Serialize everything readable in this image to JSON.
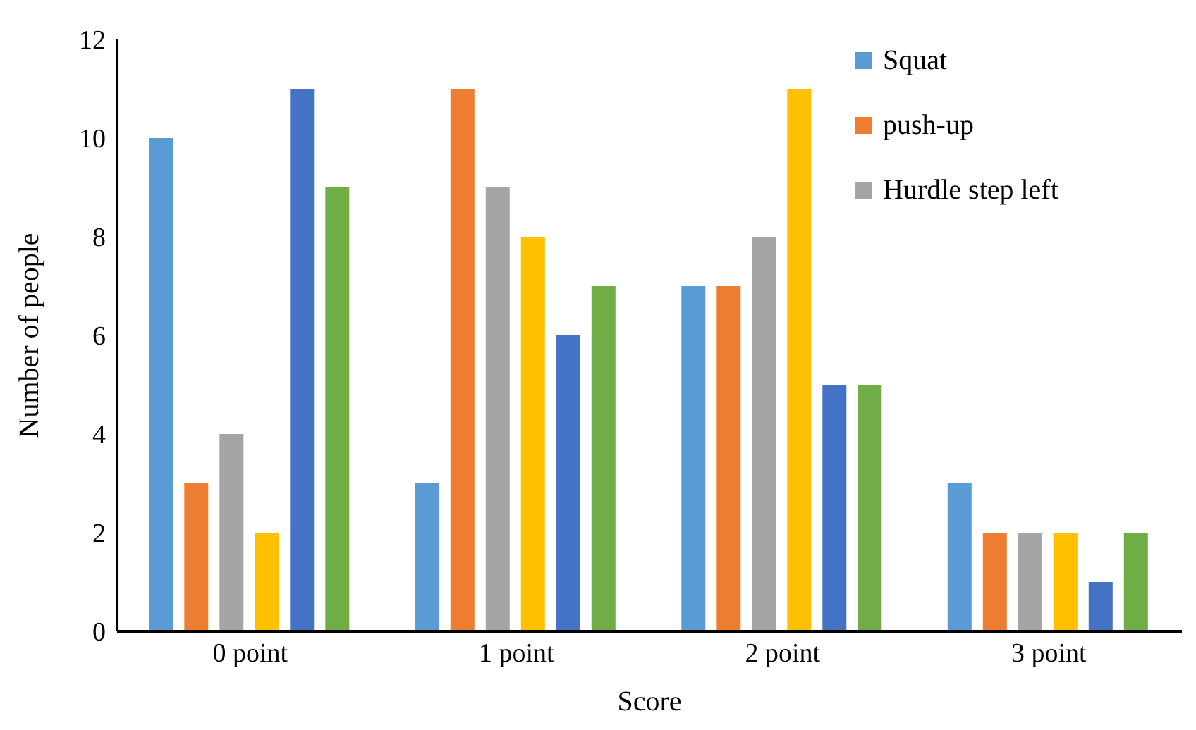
{
  "chart_data": {
    "type": "bar",
    "xlabel": "Score",
    "ylabel": "Number of people",
    "categories": [
      "0 point",
      "1 point",
      "2 point",
      "3 point"
    ],
    "series": [
      {
        "name": "Squat",
        "color": "#5b9bd5",
        "values": [
          10,
          3,
          7,
          3
        ]
      },
      {
        "name": "push-up",
        "color": "#ed7d31",
        "values": [
          3,
          11,
          7,
          2
        ]
      },
      {
        "name": "Hurdle step left",
        "color": "#a5a5a5",
        "values": [
          4,
          9,
          8,
          2
        ]
      },
      {
        "color": "#ffc000",
        "values": [
          2,
          8,
          11,
          2
        ]
      },
      {
        "color": "#4472c4",
        "values": [
          11,
          6,
          5,
          1
        ]
      },
      {
        "color": "#70ad47",
        "values": [
          9,
          7,
          5,
          2
        ]
      }
    ],
    "ylim": [
      0,
      12
    ],
    "yticks": [
      0,
      2,
      4,
      6,
      8,
      10,
      12
    ],
    "grid": false,
    "legend": "top right"
  }
}
